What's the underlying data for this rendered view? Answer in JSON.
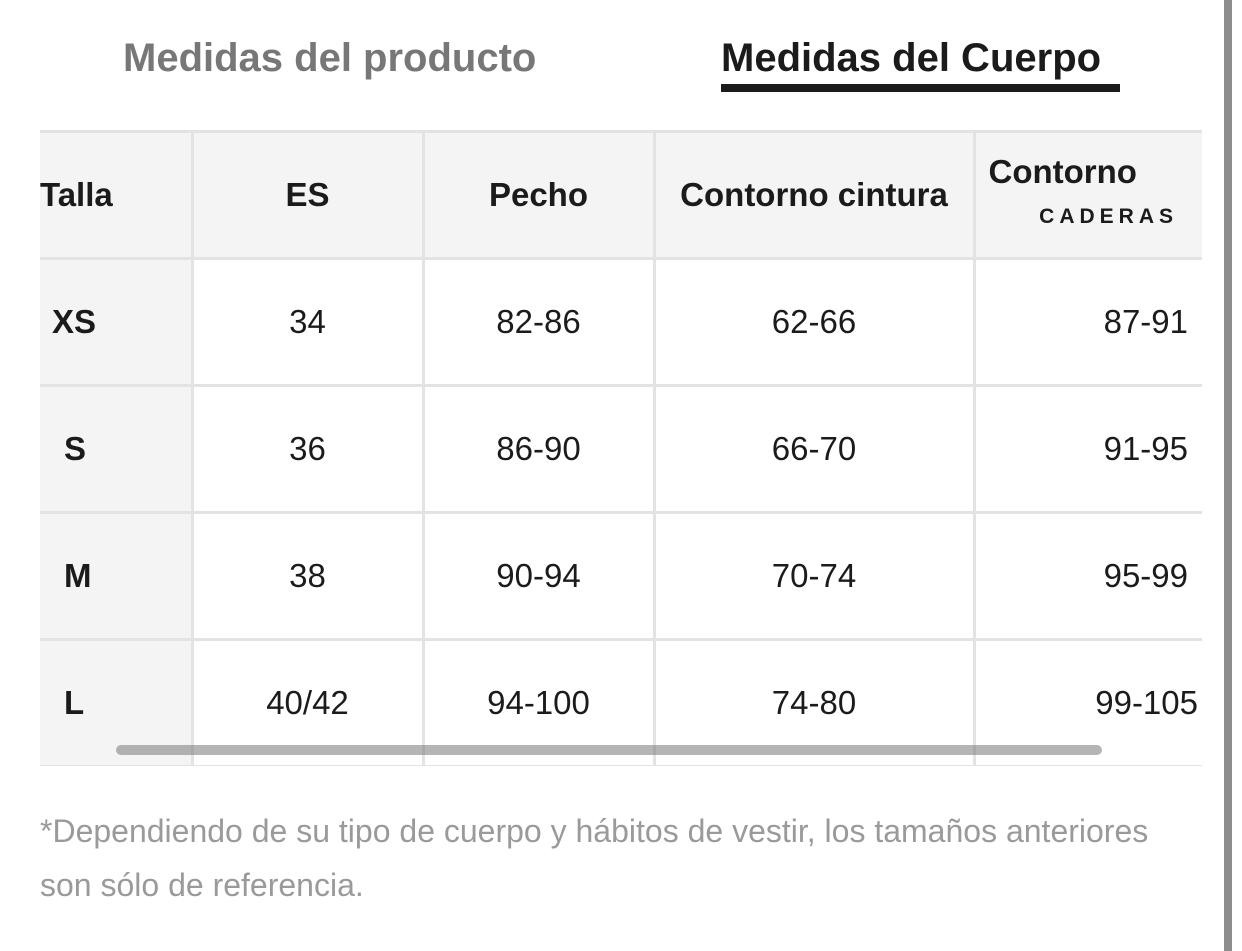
{
  "tabs": {
    "product": "Medidas del producto",
    "body": "Medidas del Cuerpo"
  },
  "table": {
    "headers": {
      "talla": "Talla",
      "es": "ES",
      "pecho": "Pecho",
      "cintura": "Contorno cintura",
      "caderas_main": "Contorno",
      "caderas_sub": "CADERAS"
    },
    "rows": [
      {
        "talla": "XS",
        "es": "34",
        "pecho": "82-86",
        "cintura": "62-66",
        "caderas": "87-91"
      },
      {
        "talla": "S",
        "es": "36",
        "pecho": "86-90",
        "cintura": "66-70",
        "caderas": "91-95"
      },
      {
        "talla": "M",
        "es": "38",
        "pecho": "90-94",
        "cintura": "70-74",
        "caderas": "95-99"
      },
      {
        "talla": "L",
        "es": "40/42",
        "pecho": "94-100",
        "cintura": "74-80",
        "caderas": "99-105"
      }
    ]
  },
  "footnote": "*Dependiendo de su tipo de cuerpo y hábitos de vestir, los tamaños anteriores son sólo de referencia.",
  "colors": {
    "active_tab": "#1b1b1b",
    "inactive_tab": "#777777",
    "header_bg": "#f4f4f4",
    "border": "#e3e3e3",
    "footnote": "#9a9a9a"
  }
}
